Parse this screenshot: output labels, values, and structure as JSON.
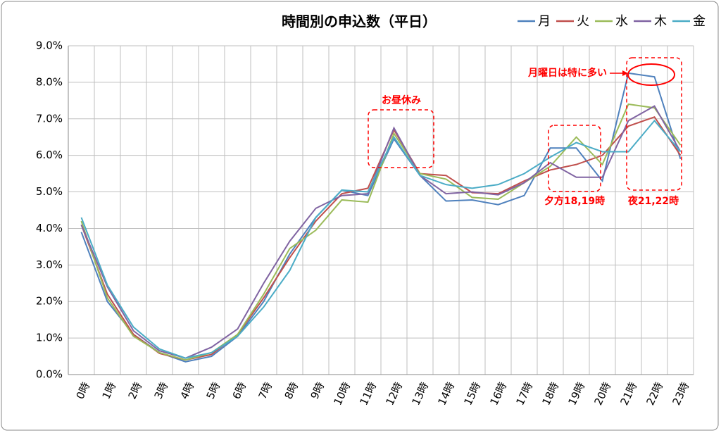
{
  "chart_data": {
    "type": "line",
    "title": "時間別の申込数（平日）",
    "categories": [
      "0時",
      "1時",
      "2時",
      "3時",
      "4時",
      "5時",
      "6時",
      "7時",
      "8時",
      "9時",
      "10時",
      "11時",
      "12時",
      "13時",
      "14時",
      "15時",
      "16時",
      "17時",
      "18時",
      "19時",
      "20時",
      "21時",
      "22時",
      "23時"
    ],
    "series": [
      {
        "name": "月",
        "color": "#4f81bd",
        "values": [
          3.9,
          2.0,
          1.1,
          0.6,
          0.35,
          0.5,
          1.05,
          2.0,
          3.3,
          4.3,
          5.05,
          4.9,
          6.45,
          5.45,
          4.75,
          4.78,
          4.65,
          4.9,
          6.2,
          6.2,
          5.3,
          8.25,
          8.15,
          5.9
        ]
      },
      {
        "name": "火",
        "color": "#c0504d",
        "values": [
          4.1,
          2.2,
          1.1,
          0.58,
          0.4,
          0.55,
          1.1,
          2.1,
          3.2,
          4.2,
          4.95,
          5.1,
          6.7,
          5.5,
          5.45,
          4.98,
          4.95,
          5.3,
          5.6,
          5.75,
          6.0,
          6.8,
          7.05,
          6.0
        ]
      },
      {
        "name": "水",
        "color": "#9bbb59",
        "values": [
          4.2,
          2.1,
          1.05,
          0.6,
          0.4,
          0.6,
          1.1,
          2.2,
          3.45,
          3.95,
          4.78,
          4.72,
          6.6,
          5.5,
          5.35,
          4.85,
          4.8,
          5.25,
          5.7,
          6.5,
          5.75,
          7.4,
          7.3,
          6.28
        ]
      },
      {
        "name": "木",
        "color": "#8064a2",
        "values": [
          4.1,
          2.4,
          1.2,
          0.65,
          0.45,
          0.75,
          1.25,
          2.5,
          3.65,
          4.55,
          4.9,
          4.95,
          6.75,
          5.45,
          4.95,
          5.0,
          4.92,
          5.25,
          5.8,
          5.4,
          5.4,
          6.95,
          7.35,
          6.1
        ]
      },
      {
        "name": "金",
        "color": "#4bacc6",
        "values": [
          4.3,
          2.45,
          1.3,
          0.7,
          0.45,
          0.6,
          1.05,
          1.85,
          2.85,
          4.3,
          5.05,
          5.0,
          6.5,
          5.45,
          5.2,
          5.1,
          5.2,
          5.5,
          5.95,
          6.35,
          6.1,
          6.1,
          6.95,
          6.1
        ]
      }
    ],
    "ylim": [
      0,
      9
    ],
    "yticks": [
      {
        "value": 0,
        "label": "0.0%"
      },
      {
        "value": 1,
        "label": "1.0%"
      },
      {
        "value": 2,
        "label": "2.0%"
      },
      {
        "value": 3,
        "label": "3.0%"
      },
      {
        "value": 4,
        "label": "4.0%"
      },
      {
        "value": 5,
        "label": "5.0%"
      },
      {
        "value": 6,
        "label": "6.0%"
      },
      {
        "value": 7,
        "label": "7.0%"
      },
      {
        "value": 8,
        "label": "8.0%"
      },
      {
        "value": 9,
        "label": "9.0%"
      }
    ],
    "grid": true,
    "legend": "top-right",
    "annotations": [
      "お昼休み",
      "夕方18,19時",
      "夜21,22時",
      "月曜日は特に多い"
    ]
  }
}
